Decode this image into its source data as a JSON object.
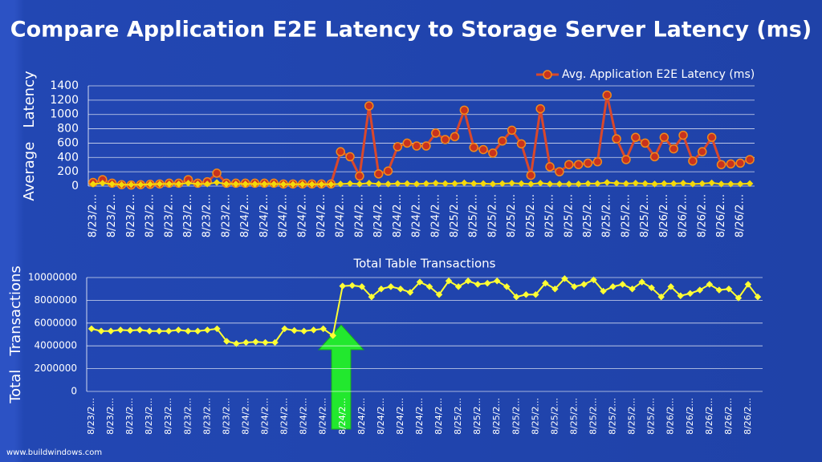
{
  "slide": {
    "title": "Compare Application E2E Latency to Storage Server Latency (ms)",
    "footer": "www.buildwindows.com"
  },
  "chart_data": [
    {
      "type": "line",
      "ylabel": "Average   Latency",
      "legend": "top-right",
      "grid": true,
      "categories": [
        "8/23/2...",
        null,
        "8/23/2...",
        null,
        "8/23/2...",
        null,
        "8/23/2...",
        null,
        "8/23/2...",
        null,
        "8/23/2...",
        null,
        "8/23/2...",
        null,
        "8/23/2...",
        null,
        "8/24/2...",
        null,
        "8/24/2...",
        null,
        "8/24/2...",
        null,
        "8/24/2...",
        null,
        "8/24/2...",
        null,
        "8/24/2...",
        null,
        "8/24/2...",
        null,
        "8/24/2...",
        null,
        "8/24/2...",
        null,
        "8/24/2...",
        null,
        "8/24/2...",
        null,
        "8/25/2...",
        null,
        "8/25/2...",
        null,
        "8/25/2...",
        null,
        "8/25/2...",
        null,
        "8/25/2...",
        null,
        "8/25/2...",
        null,
        "8/25/2...",
        null,
        "8/25/2...",
        null,
        "8/25/2...",
        null,
        "8/25/2...",
        null,
        "8/25/2...",
        null,
        "8/26/2...",
        null,
        "8/26/2...",
        null,
        "8/26/2...",
        null,
        "8/26/2...",
        null,
        "8/26/2...",
        null
      ],
      "ylim": [
        0,
        1400
      ],
      "yticks": [
        0,
        200,
        400,
        600,
        800,
        1000,
        1200,
        1400
      ],
      "series": [
        {
          "name": "Avg. Application E2E Latency (ms)",
          "color": "#d9482b",
          "values": [
            50,
            90,
            40,
            20,
            15,
            20,
            25,
            30,
            40,
            40,
            90,
            40,
            60,
            180,
            40,
            40,
            40,
            40,
            40,
            40,
            30,
            30,
            30,
            30,
            30,
            30,
            480,
            410,
            140,
            1120,
            170,
            210,
            550,
            600,
            560,
            560,
            740,
            650,
            690,
            1060,
            540,
            510,
            460,
            630,
            780,
            590,
            150,
            1080,
            270,
            200,
            300,
            300,
            320,
            340,
            1270,
            660,
            370,
            680,
            600,
            410,
            680,
            520,
            710,
            350,
            480,
            680,
            300,
            310,
            320,
            370
          ]
        },
        {
          "color": "#f5d90a",
          "values": [
            30,
            40,
            30,
            20,
            20,
            20,
            25,
            30,
            30,
            30,
            40,
            30,
            30,
            50,
            30,
            30,
            30,
            30,
            30,
            30,
            25,
            25,
            25,
            25,
            25,
            25,
            30,
            35,
            30,
            40,
            30,
            30,
            35,
            35,
            30,
            35,
            40,
            35,
            35,
            45,
            35,
            35,
            30,
            35,
            40,
            35,
            30,
            40,
            30,
            30,
            30,
            30,
            35,
            35,
            50,
            40,
            35,
            40,
            35,
            30,
            35,
            35,
            40,
            30,
            35,
            45,
            30,
            30,
            30,
            35
          ]
        }
      ]
    },
    {
      "type": "line",
      "title": "Total Table Transactions",
      "ylabel": "Total   Transactions",
      "grid": true,
      "categories": [
        "8/23/2...",
        null,
        "8/23/2...",
        null,
        "8/23/2...",
        null,
        "8/23/2...",
        null,
        "8/23/2...",
        null,
        "8/23/2...",
        null,
        "8/23/2...",
        null,
        "8/23/2...",
        null,
        "8/24/2...",
        null,
        "8/24/2...",
        null,
        "8/24/2...",
        null,
        "8/24/2...",
        null,
        "8/24/2...",
        null,
        "8/24/2...",
        null,
        "8/24/2...",
        null,
        "8/24/2...",
        null,
        "8/24/2...",
        null,
        "8/24/2...",
        null,
        "8/24/2...",
        null,
        "8/25/2...",
        null,
        "8/25/2...",
        null,
        "8/25/2...",
        null,
        "8/25/2...",
        null,
        "8/25/2...",
        null,
        "8/25/2...",
        null,
        "8/25/2...",
        null,
        "8/25/2...",
        null,
        "8/25/2...",
        null,
        "8/25/2...",
        null,
        "8/25/2...",
        null,
        "8/26/2...",
        null,
        "8/26/2...",
        null,
        "8/26/2...",
        null,
        "8/26/2...",
        null,
        "8/26/2...",
        null
      ],
      "ylim": [
        0,
        10000000
      ],
      "yticks": [
        0,
        2000000,
        4000000,
        6000000,
        8000000,
        10000000
      ],
      "series": [
        {
          "color": "#ffff33",
          "values": [
            5500000,
            5300000,
            5300000,
            5400000,
            5350000,
            5400000,
            5300000,
            5300000,
            5300000,
            5400000,
            5300000,
            5300000,
            5400000,
            5500000,
            4400000,
            4200000,
            4300000,
            4350000,
            4300000,
            4300000,
            5500000,
            5350000,
            5300000,
            5400000,
            5500000,
            4900000,
            9250000,
            9300000,
            9200000,
            8300000,
            9000000,
            9200000,
            9000000,
            8700000,
            9600000,
            9200000,
            8500000,
            9700000,
            9200000,
            9700000,
            9400000,
            9500000,
            9700000,
            9200000,
            8300000,
            8500000,
            8500000,
            9500000,
            9000000,
            9900000,
            9200000,
            9400000,
            9800000,
            8800000,
            9200000,
            9400000,
            9000000,
            9600000,
            9100000,
            8300000,
            9200000,
            8400000,
            8600000,
            8900000,
            9400000,
            8900000,
            9000000,
            8200000,
            9400000,
            8300000
          ]
        }
      ]
    }
  ]
}
